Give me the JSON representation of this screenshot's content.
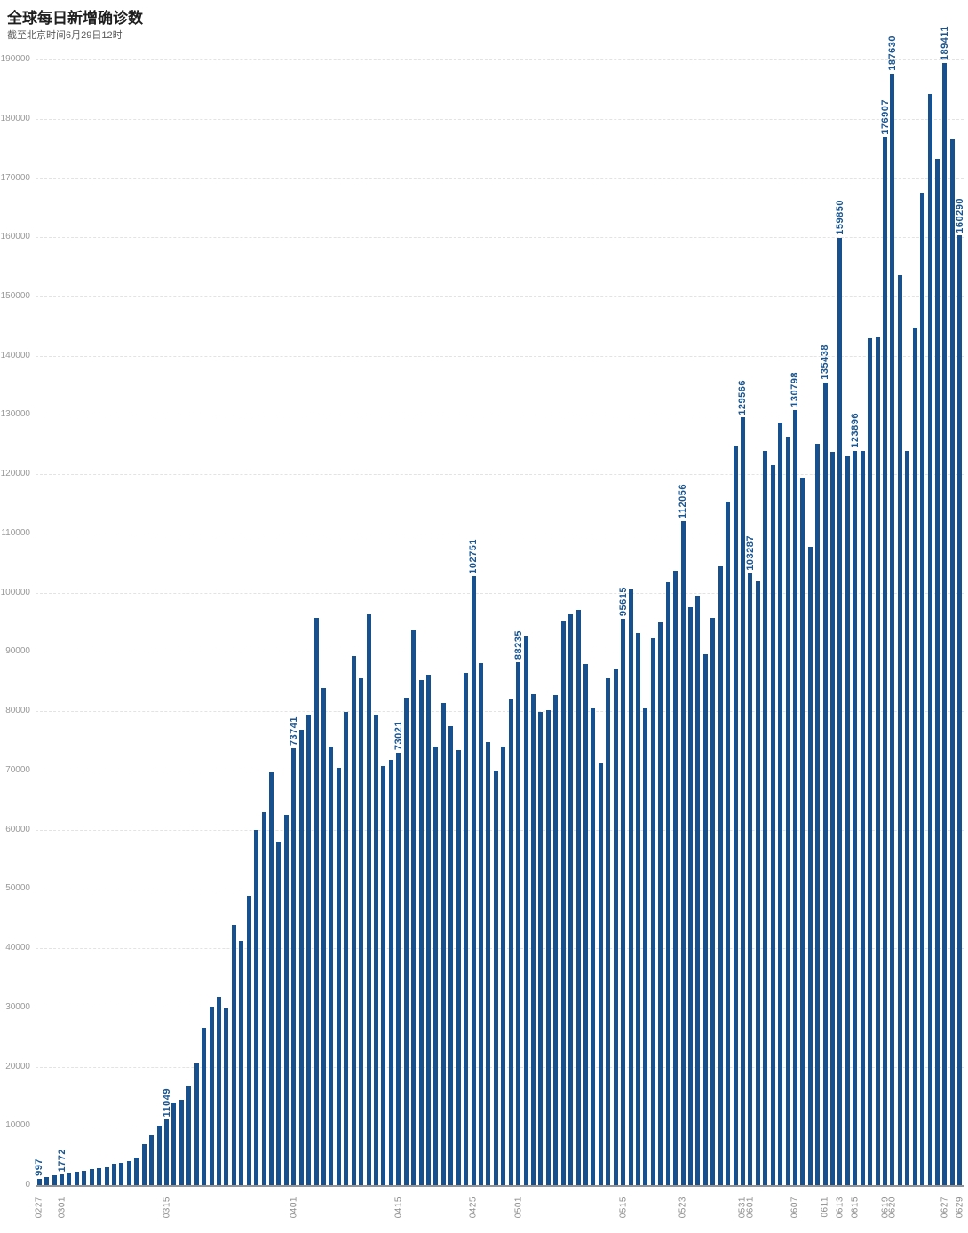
{
  "header": {
    "title": "全球每日新增确诊数",
    "subtitle": "截至北京时间6月29日12时"
  },
  "colors": {
    "bar": "#17508c",
    "value_label": "#1a558f",
    "y_axis_label": "#999999",
    "x_axis_label": "#8c8c8c",
    "gridline": "#e3e3e3",
    "baseline": "#949494",
    "title": "#1f1f1f",
    "subtitle": "#595959",
    "background": "#ffffff"
  },
  "chart_data": {
    "type": "bar",
    "title": "全球每日新增确诊数",
    "subtitle": "截至北京时间6月29日12时",
    "xlabel": "",
    "ylabel": "",
    "ylim": [
      0,
      190000
    ],
    "y_tick_interval": 10000,
    "y_ticks": [
      0,
      10000,
      20000,
      30000,
      40000,
      50000,
      60000,
      70000,
      80000,
      90000,
      100000,
      110000,
      120000,
      130000,
      140000,
      150000,
      160000,
      170000,
      180000,
      190000
    ],
    "grid": "horizontal-dashed",
    "legend": "none",
    "bar_color": "#17508c",
    "x_axis_ticks": [
      "0227",
      "0301",
      "0315",
      "0401",
      "0415",
      "0425",
      "0501",
      "0515",
      "0523",
      "0531",
      "0601",
      "0607",
      "0611",
      "0613",
      "0615",
      "0619",
      "0620",
      "0627",
      "0629"
    ],
    "data_labels": [
      {
        "date": "0227",
        "value": 997
      },
      {
        "date": "0301",
        "value": 1772
      },
      {
        "date": "0315",
        "value": 11049
      },
      {
        "date": "0401",
        "value": 73741
      },
      {
        "date": "0415",
        "value": 73021
      },
      {
        "date": "0425",
        "value": 102751
      },
      {
        "date": "0501",
        "value": 88235
      },
      {
        "date": "0515",
        "value": 95615
      },
      {
        "date": "0523",
        "value": 112056
      },
      {
        "date": "0531",
        "value": 129566
      },
      {
        "date": "0601",
        "value": 103287
      },
      {
        "date": "0607",
        "value": 130798
      },
      {
        "date": "0611",
        "value": 135438
      },
      {
        "date": "0613",
        "value": 159850
      },
      {
        "date": "0615",
        "value": 123896
      },
      {
        "date": "0619",
        "value": 176907
      },
      {
        "date": "0620",
        "value": 187630
      },
      {
        "date": "0627",
        "value": 189411
      },
      {
        "date": "0629",
        "value": 160290
      }
    ],
    "categories": [
      "0227",
      "0228",
      "0229",
      "0301",
      "0302",
      "0303",
      "0304",
      "0305",
      "0306",
      "0307",
      "0308",
      "0309",
      "0310",
      "0311",
      "0312",
      "0313",
      "0314",
      "0315",
      "0316",
      "0317",
      "0318",
      "0319",
      "0320",
      "0321",
      "0322",
      "0323",
      "0324",
      "0325",
      "0326",
      "0327",
      "0328",
      "0329",
      "0330",
      "0331",
      "0401",
      "0402",
      "0403",
      "0404",
      "0405",
      "0406",
      "0407",
      "0408",
      "0409",
      "0410",
      "0411",
      "0412",
      "0413",
      "0414",
      "0415",
      "0416",
      "0417",
      "0418",
      "0419",
      "0420",
      "0421",
      "0422",
      "0423",
      "0424",
      "0425",
      "0426",
      "0427",
      "0428",
      "0429",
      "0430",
      "0501",
      "0502",
      "0503",
      "0504",
      "0505",
      "0506",
      "0507",
      "0508",
      "0509",
      "0510",
      "0511",
      "0512",
      "0513",
      "0514",
      "0515",
      "0516",
      "0517",
      "0518",
      "0519",
      "0520",
      "0521",
      "0522",
      "0523",
      "0524",
      "0525",
      "0526",
      "0527",
      "0528",
      "0529",
      "0530",
      "0531",
      "0601",
      "0602",
      "0603",
      "0604",
      "0605",
      "0606",
      "0607",
      "0608",
      "0609",
      "0610",
      "0611",
      "0612",
      "0613",
      "0614",
      "0615",
      "0616",
      "0617",
      "0618",
      "0619",
      "0620",
      "0621",
      "0622",
      "0623",
      "0624",
      "0625",
      "0626",
      "0627",
      "0628",
      "0629"
    ],
    "values": [
      997,
      1350,
      1600,
      1772,
      2100,
      2300,
      2450,
      2700,
      2850,
      3050,
      3600,
      3750,
      4000,
      4700,
      6900,
      8400,
      10000,
      11049,
      14000,
      14400,
      16800,
      20500,
      26500,
      30200,
      31700,
      29900,
      43900,
      41200,
      48900,
      60000,
      63000,
      69700,
      58000,
      62500,
      73741,
      76900,
      79400,
      95800,
      83900,
      74100,
      70500,
      79800,
      89300,
      85600,
      96400,
      79400,
      70800,
      71800,
      73021,
      82300,
      93700,
      85300,
      86100,
      74100,
      81400,
      77500,
      73500,
      86500,
      102751,
      88100,
      74800,
      70000,
      74100,
      82000,
      88235,
      92600,
      82900,
      79900,
      80100,
      82700,
      95100,
      96400,
      97100,
      88000,
      80500,
      71200,
      85600,
      87100,
      95615,
      100500,
      93200,
      80500,
      92300,
      95000,
      101700,
      103700,
      112056,
      97600,
      99500,
      89600,
      95700,
      104400,
      115400,
      124800,
      129566,
      103287,
      101900,
      123900,
      121600,
      128700,
      126300,
      130798,
      119400,
      107700,
      125100,
      135438,
      123800,
      159850,
      123000,
      123896,
      124000,
      142900,
      143100,
      176907,
      187630,
      153600,
      124000,
      144800,
      167500,
      184200,
      173200,
      189411,
      176500,
      160290
    ]
  }
}
